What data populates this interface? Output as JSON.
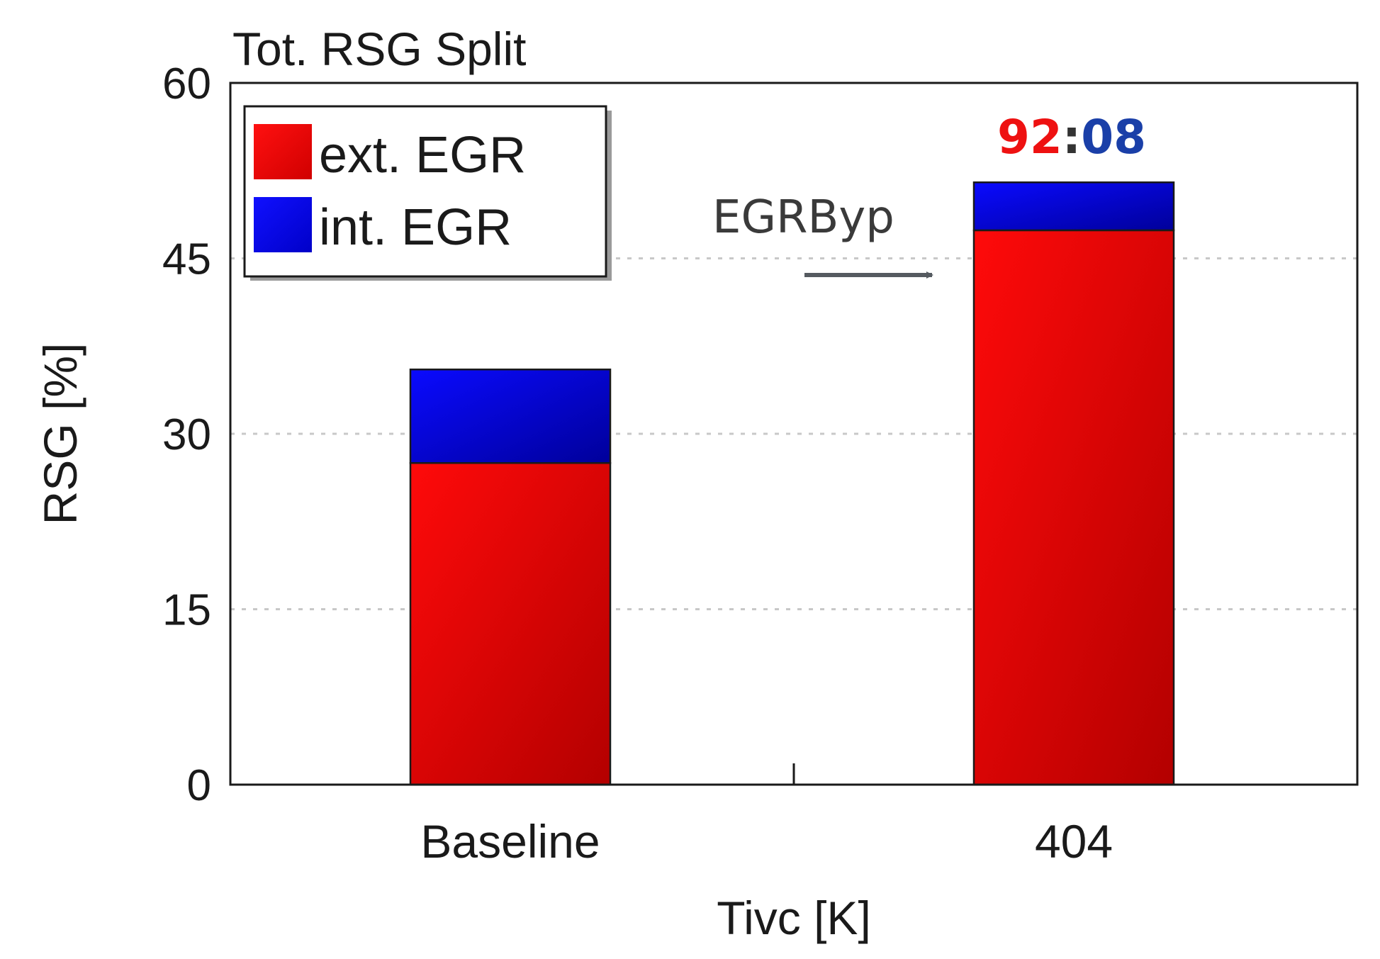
{
  "chart_data": {
    "type": "bar",
    "stacked": true,
    "title": "Tot. RSG Split",
    "xlabel": "Tivc [K]",
    "ylabel": "RSG [%]",
    "categories": [
      "Baseline",
      "404"
    ],
    "ylim": [
      0,
      60
    ],
    "yticks": [
      0,
      15,
      30,
      45,
      60
    ],
    "grid": "dotted horizontal",
    "legend_position": "top-left",
    "series": [
      {
        "name": "ext. EGR",
        "values": [
          27.5,
          47.4
        ],
        "color": "#ee0000"
      },
      {
        "name": "int. EGR",
        "values": [
          8.0,
          4.1
        ],
        "color": "#0000dd"
      }
    ],
    "annotations": {
      "arrow_label": "EGRByp",
      "ratio_left": "92",
      "ratio_sep": ":",
      "ratio_right": "08"
    }
  }
}
